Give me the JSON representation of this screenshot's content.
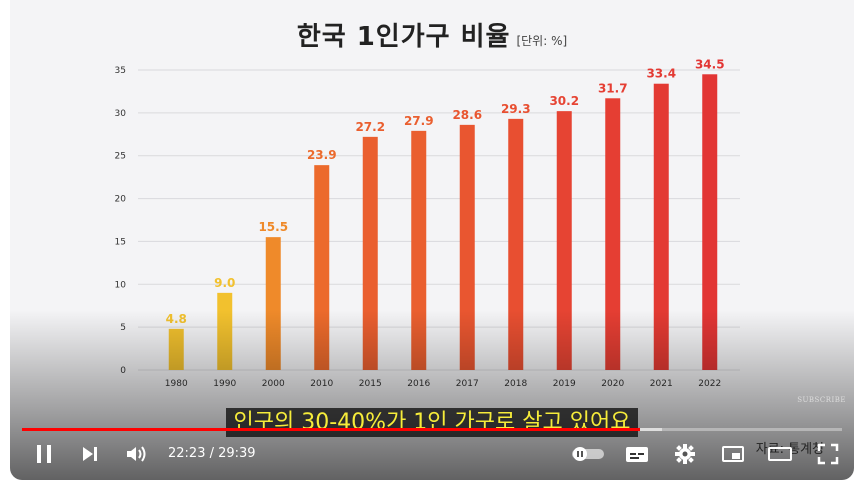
{
  "chart": {
    "title": "한국 1인가구 비율",
    "unit": "[단위: %]"
  },
  "chart_data": {
    "type": "bar",
    "title": "한국 1인가구 비율",
    "unit": "[단위: %]",
    "categories": [
      "1980",
      "1990",
      "2000",
      "2010",
      "2015",
      "2016",
      "2017",
      "2018",
      "2019",
      "2020",
      "2021",
      "2022"
    ],
    "values": [
      4.8,
      9.0,
      15.5,
      23.9,
      27.2,
      27.9,
      28.6,
      29.3,
      30.2,
      31.7,
      33.4,
      34.5
    ],
    "value_labels": [
      "4.8",
      "9.0",
      "15.5",
      "23.9",
      "27.2",
      "27.9",
      "28.6",
      "29.3",
      "30.2",
      "31.7",
      "33.4",
      "34.5"
    ],
    "ylim": [
      0,
      35
    ],
    "yticks": [
      "0",
      "5",
      "10",
      "15",
      "20",
      "25",
      "30",
      "35"
    ],
    "bar_colors": [
      "#f2c12e",
      "#f2c12e",
      "#ef8a2a",
      "#ec6a2c",
      "#ea5f2f",
      "#ea5f2f",
      "#e95630",
      "#e84f31",
      "#e64433",
      "#e53e33",
      "#e33a33",
      "#e23534"
    ],
    "grid": true
  },
  "caption": "인구의 30-40%가 1인 가구로 살고 있어요",
  "source_text": "자료: 통계청",
  "subscribe_text": "SUBSCRIBE",
  "player": {
    "current_time": "22:23",
    "duration": "29:39",
    "time_display": "22:23 / 29:39",
    "progress": 0.754,
    "buffered": 0.78,
    "progress_color": "#ff0000"
  }
}
